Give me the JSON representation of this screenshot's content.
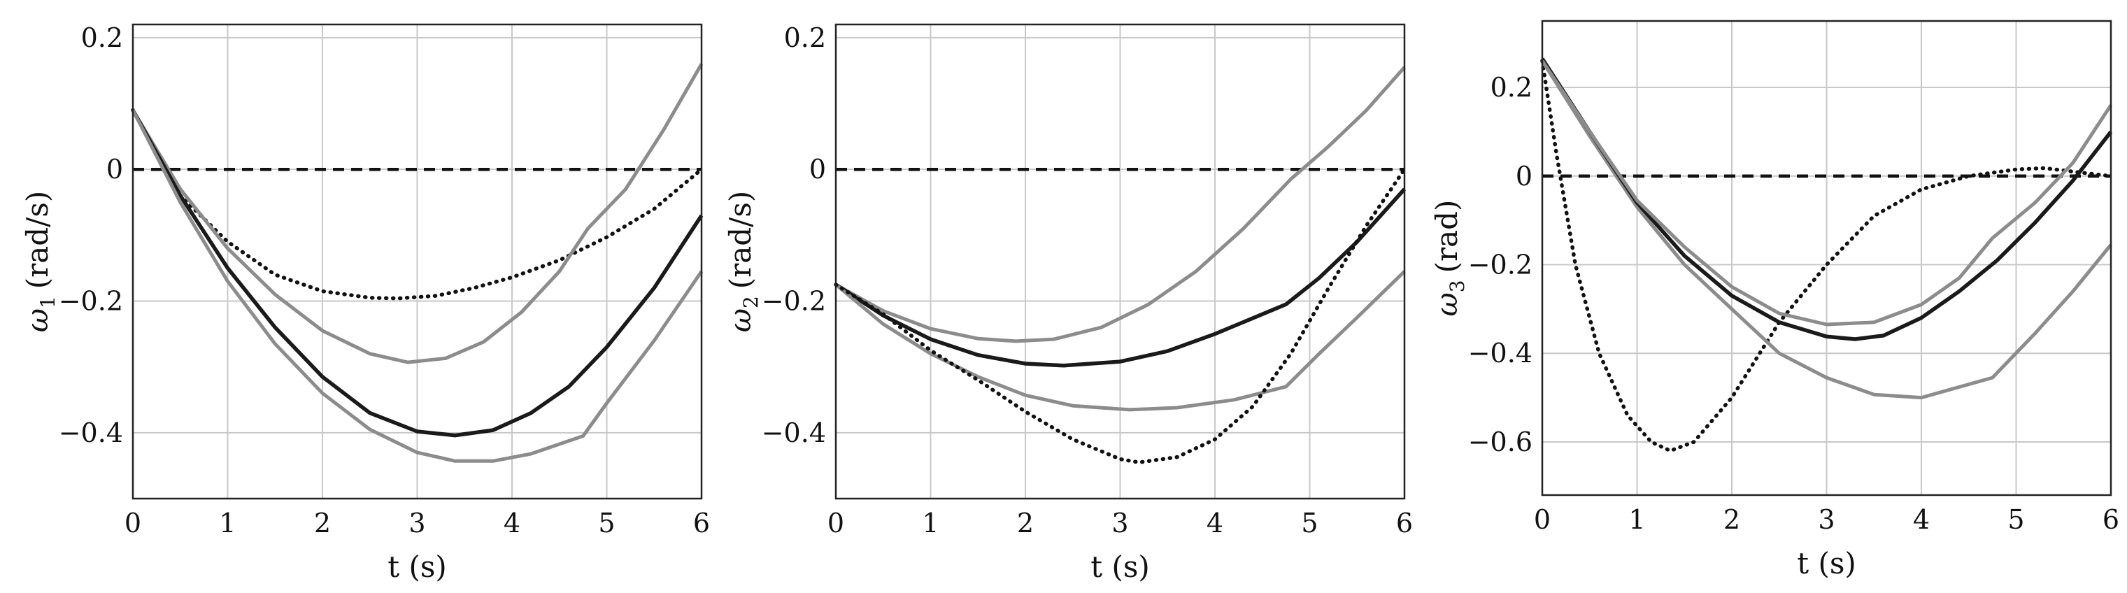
{
  "colors": {
    "grid": "#c8c8c8",
    "frame": "#222222",
    "nominal": "#1a1a1a",
    "bound": "#8c8c8c",
    "reference": "#111111",
    "alternative": "#111111"
  },
  "chart_data": [
    {
      "type": "line",
      "xlabel": "t (s)",
      "ylabel_symbol": "ω",
      "ylabel_sub": "1",
      "ylabel_unit": "(rad/s)",
      "xlim": [
        0,
        6
      ],
      "ylim": [
        -0.5,
        0.22
      ],
      "xticks": [
        0,
        1,
        2,
        3,
        4,
        5,
        6
      ],
      "yticks": [
        0.2,
        0,
        -0.2,
        -0.4
      ],
      "ytick_labels": [
        "0.2",
        "0",
        "−0.2",
        "−0.4"
      ],
      "grid": true,
      "series": [
        {
          "style": "reference-dashed",
          "x": [
            0,
            6
          ],
          "y": [
            0,
            0
          ]
        },
        {
          "style": "dotted",
          "x": [
            0,
            0.5,
            1,
            1.5,
            2,
            2.5,
            2.8,
            3.2,
            3.6,
            4,
            4.5,
            5,
            5.5,
            6
          ],
          "y": [
            0.09,
            -0.04,
            -0.11,
            -0.16,
            -0.185,
            -0.195,
            -0.196,
            -0.192,
            -0.18,
            -0.164,
            -0.138,
            -0.103,
            -0.06,
            0
          ]
        },
        {
          "style": "bound-gray",
          "x": [
            0,
            0.5,
            1,
            1.5,
            2,
            2.5,
            2.9,
            3.3,
            3.7,
            4.1,
            4.5,
            4.8,
            5.2,
            5.6,
            6
          ],
          "y": [
            0.09,
            -0.03,
            -0.12,
            -0.19,
            -0.245,
            -0.28,
            -0.293,
            -0.287,
            -0.262,
            -0.217,
            -0.155,
            -0.09,
            -0.03,
            0.06,
            0.16
          ]
        },
        {
          "style": "nominal-black",
          "x": [
            0,
            0.5,
            1,
            1.5,
            2,
            2.5,
            3,
            3.4,
            3.8,
            4.2,
            4.6,
            5,
            5.5,
            6
          ],
          "y": [
            0.09,
            -0.04,
            -0.15,
            -0.24,
            -0.315,
            -0.37,
            -0.398,
            -0.404,
            -0.396,
            -0.37,
            -0.33,
            -0.27,
            -0.18,
            -0.07
          ]
        },
        {
          "style": "bound-gray",
          "x": [
            0,
            0.5,
            1,
            1.5,
            2,
            2.5,
            3,
            3.4,
            3.8,
            4.2,
            4.75,
            5,
            5.5,
            6
          ],
          "y": [
            0.09,
            -0.05,
            -0.17,
            -0.265,
            -0.34,
            -0.395,
            -0.43,
            -0.443,
            -0.443,
            -0.432,
            -0.405,
            -0.355,
            -0.26,
            -0.155
          ]
        }
      ]
    },
    {
      "type": "line",
      "xlabel": "t (s)",
      "ylabel_symbol": "ω",
      "ylabel_sub": "2",
      "ylabel_unit": "(rad/s)",
      "xlim": [
        0,
        6
      ],
      "ylim": [
        -0.5,
        0.22
      ],
      "xticks": [
        0,
        1,
        2,
        3,
        4,
        5,
        6
      ],
      "yticks": [
        0.2,
        0,
        -0.2,
        -0.4
      ],
      "ytick_labels": [
        "0.2",
        "0",
        "−0.2",
        "−0.4"
      ],
      "grid": true,
      "series": [
        {
          "style": "reference-dashed",
          "x": [
            0,
            6
          ],
          "y": [
            0,
            0
          ]
        },
        {
          "style": "bound-gray",
          "x": [
            0,
            0.5,
            1,
            1.5,
            1.9,
            2.3,
            2.8,
            3.3,
            3.8,
            4.3,
            4.8,
            5.2,
            5.6,
            6
          ],
          "y": [
            -0.175,
            -0.215,
            -0.242,
            -0.257,
            -0.261,
            -0.258,
            -0.24,
            -0.205,
            -0.155,
            -0.09,
            -0.015,
            0.035,
            0.09,
            0.155
          ]
        },
        {
          "style": "nominal-black",
          "x": [
            0,
            0.5,
            1,
            1.5,
            2,
            2.4,
            3,
            3.5,
            4,
            4.75,
            5.1,
            5.5,
            6
          ],
          "y": [
            -0.175,
            -0.222,
            -0.258,
            -0.282,
            -0.295,
            -0.298,
            -0.292,
            -0.276,
            -0.25,
            -0.205,
            -0.165,
            -0.11,
            -0.03
          ]
        },
        {
          "style": "bound-gray",
          "x": [
            0,
            0.5,
            1,
            1.5,
            2,
            2.5,
            3.1,
            3.6,
            4.2,
            4.75,
            5.1,
            5.5,
            6
          ],
          "y": [
            -0.175,
            -0.235,
            -0.28,
            -0.315,
            -0.343,
            -0.359,
            -0.365,
            -0.362,
            -0.35,
            -0.33,
            -0.28,
            -0.225,
            -0.155
          ]
        },
        {
          "style": "dotted",
          "x": [
            0,
            0.5,
            1,
            1.5,
            2,
            2.5,
            3,
            3.2,
            3.6,
            4,
            4.4,
            4.8,
            5.2,
            5.6,
            6
          ],
          "y": [
            -0.175,
            -0.22,
            -0.275,
            -0.32,
            -0.368,
            -0.41,
            -0.44,
            -0.445,
            -0.437,
            -0.41,
            -0.36,
            -0.28,
            -0.18,
            -0.085,
            0
          ]
        }
      ]
    },
    {
      "type": "line",
      "xlabel": "t (s)",
      "ylabel_symbol": "ω",
      "ylabel_sub": "3",
      "ylabel_unit": "(rad)",
      "xlim": [
        0,
        6
      ],
      "ylim": [
        -0.72,
        0.35
      ],
      "xticks": [
        0,
        1,
        2,
        3,
        4,
        5,
        6
      ],
      "yticks": [
        0.2,
        0,
        -0.2,
        -0.4,
        -0.6
      ],
      "ytick_labels": [
        "0.2",
        "0",
        "−0.2",
        "−0.4",
        "−0.6"
      ],
      "grid": true,
      "series": [
        {
          "style": "reference-dashed",
          "x": [
            0,
            6
          ],
          "y": [
            0,
            0
          ]
        },
        {
          "style": "dotted",
          "x": [
            0,
            0.15,
            0.35,
            0.6,
            0.9,
            1.15,
            1.35,
            1.6,
            2,
            2.5,
            3,
            3.5,
            4,
            4.5,
            5,
            5.3,
            5.6,
            6
          ],
          "y": [
            0.26,
            0.05,
            -0.2,
            -0.4,
            -0.54,
            -0.6,
            -0.62,
            -0.6,
            -0.5,
            -0.33,
            -0.2,
            -0.09,
            -0.03,
            0,
            0.015,
            0.018,
            0.01,
            0
          ]
        },
        {
          "style": "bound-gray",
          "x": [
            0,
            0.5,
            1,
            1.5,
            2,
            2.5,
            3,
            3.5,
            4,
            4.75,
            5.2,
            5.6,
            6
          ],
          "y": [
            0.26,
            0.09,
            -0.07,
            -0.2,
            -0.3,
            -0.4,
            -0.455,
            -0.493,
            -0.5,
            -0.455,
            -0.355,
            -0.26,
            -0.155
          ]
        },
        {
          "style": "nominal-black",
          "x": [
            0,
            0.5,
            1,
            1.5,
            2,
            2.5,
            3,
            3.3,
            3.6,
            4,
            4.4,
            4.8,
            5.2,
            5.6,
            6
          ],
          "y": [
            0.265,
            0.1,
            -0.06,
            -0.18,
            -0.27,
            -0.33,
            -0.362,
            -0.368,
            -0.36,
            -0.32,
            -0.26,
            -0.19,
            -0.105,
            -0.01,
            0.1
          ]
        },
        {
          "style": "bound-gray",
          "x": [
            0,
            0.5,
            1,
            1.5,
            2,
            2.5,
            3,
            3.5,
            4,
            4.4,
            4.75,
            5.2,
            5.6,
            6
          ],
          "y": [
            0.26,
            0.1,
            -0.055,
            -0.16,
            -0.25,
            -0.31,
            -0.335,
            -0.33,
            -0.29,
            -0.23,
            -0.14,
            -0.06,
            0.03,
            0.16
          ]
        }
      ]
    }
  ]
}
